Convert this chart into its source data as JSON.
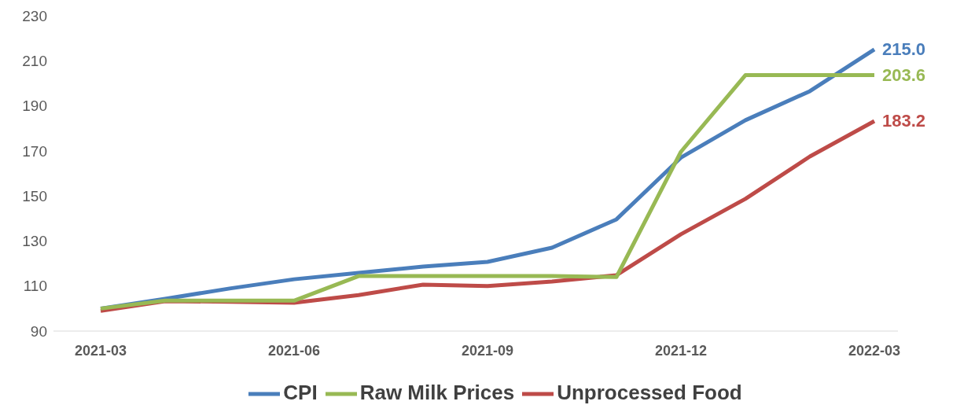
{
  "chart_data": {
    "type": "line",
    "categories": [
      "2021-03",
      null,
      null,
      "2021-06",
      null,
      null,
      "2021-09",
      null,
      null,
      "2021-12",
      null,
      null,
      "2022-03"
    ],
    "series": [
      {
        "name": "CPI",
        "color": "#4a7ebb",
        "values": [
          100,
          104.3,
          108.9,
          113,
          115.8,
          118.6,
          120.7,
          127,
          139.6,
          167,
          183.6,
          196.5,
          215.0
        ],
        "value_labels": [
          null,
          null,
          null,
          null,
          null,
          null,
          null,
          null,
          null,
          null,
          null,
          null,
          "215.0"
        ]
      },
      {
        "name": "Unprocessed Food",
        "color": "#be4b48",
        "values": [
          99,
          103.3,
          103,
          102.6,
          106,
          110.6,
          110,
          112,
          114.8,
          133,
          148.7,
          167.5,
          183.2
        ],
        "value_labels": [
          null,
          null,
          null,
          null,
          null,
          null,
          null,
          null,
          null,
          null,
          null,
          null,
          "183.2"
        ]
      },
      {
        "name": "Raw Milk Prices",
        "color": "#98b954",
        "values": [
          100,
          103.5,
          103.5,
          103.5,
          114.4,
          114.4,
          114.4,
          114.4,
          114,
          169.6,
          203.6,
          203.6,
          203.6
        ],
        "value_labels": [
          null,
          null,
          null,
          null,
          null,
          null,
          null,
          null,
          null,
          null,
          null,
          null,
          "203.6"
        ]
      }
    ],
    "ylim": [
      90,
      230
    ],
    "yticks": [
      90,
      110,
      130,
      150,
      170,
      190,
      210,
      230
    ],
    "grid": false,
    "legend": "bottom",
    "marker": "none",
    "line_style": "solid"
  }
}
